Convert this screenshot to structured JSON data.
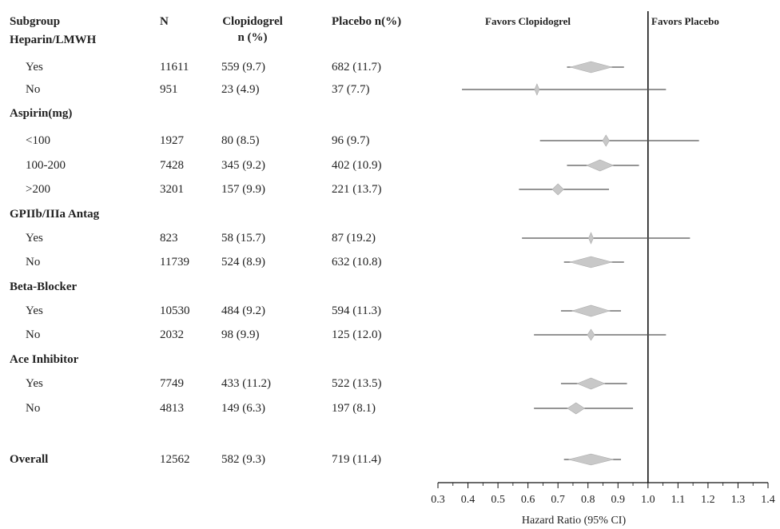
{
  "headers": {
    "subgroup": "Subgroup",
    "n": "N",
    "clopidogrel_line1": "Clopidogrel",
    "clopidogrel_line2": "n (%)",
    "placebo": "Placebo n(%)",
    "favors_left": "Favors Clopidogrel",
    "favors_right": "Favors Placebo"
  },
  "rows": [
    {
      "label": "Heparin/LMWH",
      "group": true
    },
    {
      "label": "Yes",
      "n": "11611",
      "clop": "559 (9.7)",
      "plac": "682 (11.7)"
    },
    {
      "label": "No",
      "n": "951",
      "clop": "23 (4.9)",
      "plac": "37 (7.7)"
    },
    {
      "label": "Aspirin(mg)",
      "group": true
    },
    {
      "label": "<100",
      "n": "1927",
      "clop": "80 (8.5)",
      "plac": "96 (9.7)"
    },
    {
      "label": "100-200",
      "n": "7428",
      "clop": "345 (9.2)",
      "plac": "402 (10.9)"
    },
    {
      "label": ">200",
      "n": "3201",
      "clop": "157 (9.9)",
      "plac": "221 (13.7)"
    },
    {
      "label": "GPIIb/IIIa Antag",
      "group": true
    },
    {
      "label": "Yes",
      "n": "823",
      "clop": "58 (15.7)",
      "plac": "87 (19.2)"
    },
    {
      "label": "No",
      "n": "11739",
      "clop": "524 (8.9)",
      "plac": "632 (10.8)"
    },
    {
      "label": "Beta-Blocker",
      "group": true
    },
    {
      "label": "Yes",
      "n": "10530",
      "clop": "484 (9.2)",
      "plac": "594 (11.3)"
    },
    {
      "label": "No",
      "n": "2032",
      "clop": "98 (9.9)",
      "plac": "125 (12.0)"
    },
    {
      "label": "Ace Inhibitor",
      "group": true
    },
    {
      "label": "Yes",
      "n": "7749",
      "clop": "433 (11.2)",
      "plac": "522 (13.5)"
    },
    {
      "label": "No",
      "n": "4813",
      "clop": "149 (6.3)",
      "plac": "197 (8.1)"
    },
    {
      "label": "Overall",
      "n": "12562",
      "clop": "582 (9.3)",
      "plac": "719 (11.4)",
      "overall": true
    }
  ],
  "chart_data": {
    "type": "forest",
    "xlabel": "Hazard Ratio (95% CI)",
    "xlim": [
      0.3,
      1.4
    ],
    "ticks": [
      "0.3",
      "0.4",
      "0.5",
      "0.6",
      "0.7",
      "0.8",
      "0.9",
      "1.0",
      "1.1",
      "1.2",
      "1.3",
      "1.4"
    ],
    "reference_line": 1.0,
    "points": [
      {
        "subgroup": "Heparin/LMWH Yes",
        "hr": 0.81,
        "lo": 0.73,
        "hi": 0.92
      },
      {
        "subgroup": "Heparin/LMWH No",
        "hr": 0.63,
        "lo": 0.38,
        "hi": 1.06
      },
      {
        "subgroup": "Aspirin <100",
        "hr": 0.86,
        "lo": 0.64,
        "hi": 1.17
      },
      {
        "subgroup": "Aspirin 100-200",
        "hr": 0.84,
        "lo": 0.73,
        "hi": 0.97
      },
      {
        "subgroup": "Aspirin >200",
        "hr": 0.7,
        "lo": 0.57,
        "hi": 0.87
      },
      {
        "subgroup": "GPIIb/IIIa Yes",
        "hr": 0.81,
        "lo": 0.58,
        "hi": 1.14
      },
      {
        "subgroup": "GPIIb/IIIa No",
        "hr": 0.81,
        "lo": 0.72,
        "hi": 0.92
      },
      {
        "subgroup": "Beta-Blocker Yes",
        "hr": 0.81,
        "lo": 0.71,
        "hi": 0.91
      },
      {
        "subgroup": "Beta-Blocker No",
        "hr": 0.81,
        "lo": 0.62,
        "hi": 1.06
      },
      {
        "subgroup": "Ace Inhibitor Yes",
        "hr": 0.81,
        "lo": 0.71,
        "hi": 0.93
      },
      {
        "subgroup": "Ace Inhibitor No",
        "hr": 0.76,
        "lo": 0.62,
        "hi": 0.95
      },
      {
        "subgroup": "Overall",
        "hr": 0.81,
        "lo": 0.72,
        "hi": 0.91
      }
    ]
  }
}
